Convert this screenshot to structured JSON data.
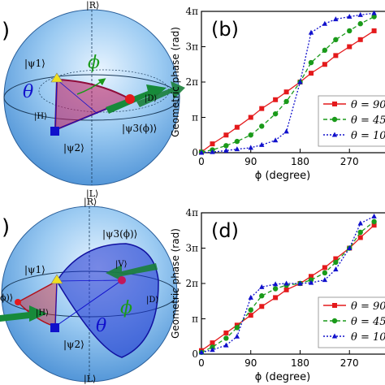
{
  "panels": {
    "a": {
      "label": ")"
    },
    "b": {
      "label": "(b)"
    },
    "c": {
      "label": ")"
    },
    "d": {
      "label": "(d)"
    }
  },
  "sphere_top": {
    "kets": {
      "R": "|R⟩",
      "L": "|L⟩",
      "H": "|H⟩",
      "D": "|D⟩",
      "psi1": "|ψ1⟩",
      "psi2": "|ψ2⟩",
      "psi3": "|ψ3(ϕ)⟩"
    },
    "phi": "ϕ",
    "theta": "θ"
  },
  "sphere_bottom": {
    "kets": {
      "R": "|R⟩",
      "L": "|L⟩",
      "H": "|H⟩",
      "D": "|D⟩",
      "V": "|V⟩",
      "psi1": "|ψ1⟩",
      "psi2": "|ψ2⟩",
      "psi3": "|ψ3(ϕ)⟩",
      "left_cut": "ϕ)⟩"
    },
    "phi": "ϕ",
    "theta": "θ"
  },
  "colors": {
    "red": "#e41a1c",
    "green": "#1a9a1a",
    "blue": "#1010cc",
    "sphere": "#6fb0e8",
    "yellow": "#f0e020"
  },
  "chart_data": [
    {
      "id": "b",
      "type": "line",
      "ylabel": "Geometric phase (rad)",
      "xlabel": "ϕ (degree)",
      "xlim": [
        0,
        330
      ],
      "ylim": [
        0,
        4
      ],
      "y_unit": "π",
      "xticks": [
        0,
        90,
        180,
        270
      ],
      "xtick_labels": [
        "0",
        "90",
        "180",
        "270"
      ],
      "yticks": [
        0,
        1,
        2,
        3,
        4
      ],
      "ytick_labels": [
        "0",
        "π",
        "2π",
        "3π",
        "4π"
      ],
      "legend_position": "bottom-right",
      "series": [
        {
          "name": "θ = 90",
          "color": "#e41a1c",
          "style": "solid",
          "marker": "square",
          "points_x": [
            0,
            20,
            45,
            65,
            90,
            110,
            135,
            155,
            180,
            200,
            225,
            245,
            270,
            290,
            315
          ],
          "points_y": [
            0.02,
            0.25,
            0.5,
            0.72,
            1.0,
            1.25,
            1.5,
            1.72,
            2.0,
            2.25,
            2.5,
            2.75,
            3.0,
            3.2,
            3.45
          ]
        },
        {
          "name": "θ = 45",
          "color": "#1a9a1a",
          "style": "dashed",
          "marker": "circle",
          "points_x": [
            0,
            20,
            45,
            65,
            90,
            110,
            135,
            155,
            180,
            200,
            225,
            245,
            270,
            290,
            315
          ],
          "points_y": [
            0.02,
            0.08,
            0.2,
            0.32,
            0.5,
            0.75,
            1.1,
            1.45,
            2.0,
            2.55,
            2.9,
            3.2,
            3.45,
            3.65,
            3.85
          ]
        },
        {
          "name": "θ = 10",
          "color": "#1010cc",
          "style": "dotted",
          "marker": "triangle",
          "points_x": [
            0,
            20,
            45,
            65,
            90,
            110,
            135,
            155,
            180,
            200,
            225,
            245,
            270,
            290,
            315
          ],
          "points_y": [
            0.0,
            0.02,
            0.06,
            0.1,
            0.14,
            0.22,
            0.35,
            0.6,
            2.0,
            3.4,
            3.65,
            3.78,
            3.85,
            3.9,
            3.95
          ]
        }
      ]
    },
    {
      "id": "d",
      "type": "line",
      "ylabel": "Geometric phase (rad)",
      "xlabel": "ϕ (degree)",
      "xlim": [
        0,
        330
      ],
      "ylim": [
        0,
        4
      ],
      "y_unit": "π",
      "xticks": [
        0,
        90,
        180,
        270
      ],
      "xtick_labels": [
        "0",
        "90",
        "180",
        "270"
      ],
      "yticks": [
        0,
        1,
        2,
        3,
        4
      ],
      "ytick_labels": [
        "0",
        "π",
        "2π",
        "3π",
        "4π"
      ],
      "legend_position": "bottom-right",
      "series": [
        {
          "name": "θ = 90",
          "color": "#e41a1c",
          "style": "solid",
          "marker": "square",
          "points_x": [
            0,
            20,
            45,
            65,
            90,
            110,
            135,
            155,
            180,
            200,
            225,
            245,
            270,
            290,
            315
          ],
          "points_y": [
            0.1,
            0.32,
            0.6,
            0.82,
            1.1,
            1.35,
            1.6,
            1.82,
            2.0,
            2.2,
            2.45,
            2.7,
            3.0,
            3.3,
            3.65
          ]
        },
        {
          "name": "θ = 45",
          "color": "#1a9a1a",
          "style": "dashed",
          "marker": "circle",
          "points_x": [
            0,
            20,
            45,
            65,
            90,
            110,
            135,
            155,
            180,
            200,
            225,
            245,
            270,
            290,
            315
          ],
          "points_y": [
            0.05,
            0.2,
            0.45,
            0.75,
            1.25,
            1.65,
            1.85,
            1.95,
            2.0,
            2.1,
            2.3,
            2.6,
            3.0,
            3.45,
            3.75
          ]
        },
        {
          "name": "θ = 10",
          "color": "#1010cc",
          "style": "dotted",
          "marker": "triangle",
          "points_x": [
            0,
            20,
            45,
            65,
            90,
            110,
            135,
            155,
            180,
            200,
            225,
            245,
            270,
            290,
            315
          ],
          "points_y": [
            0.05,
            0.12,
            0.25,
            0.5,
            1.6,
            1.9,
            1.98,
            2.0,
            2.0,
            2.02,
            2.1,
            2.4,
            3.0,
            3.7,
            3.9
          ]
        }
      ]
    }
  ]
}
